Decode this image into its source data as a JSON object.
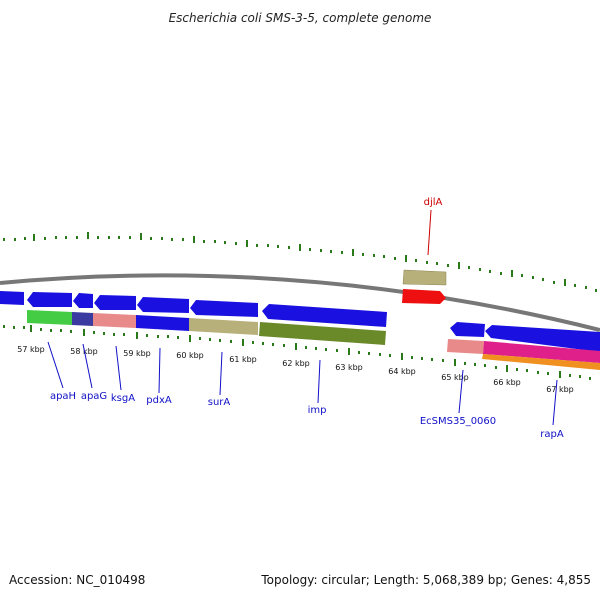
{
  "title": "Escherichia coli SMS-3-5, complete genome",
  "footer": {
    "accession": "Accession: NC_010498",
    "topology": "Topology: circular; Length: 5,068,389 bp; Genes: 4,855"
  },
  "kbp_ticks": [
    "57 kbp",
    "58 kbp",
    "59 kbp",
    "60 kbp",
    "61 kbp",
    "62 kbp",
    "63 kbp",
    "64 kbp",
    "65 kbp",
    "66 kbp",
    "67 kbp"
  ],
  "gene_labels": {
    "djlA": "djlA",
    "apaH": "apaH",
    "apaG": "apaG",
    "ksgA": "ksgA",
    "pdxA": "pdxA",
    "surA": "surA",
    "imp": "imp",
    "EcSMS35_0060": "EcSMS35_0060",
    "rapA": "rapA"
  },
  "colors": {
    "blue_gene": "#1a10e0",
    "red_gene": "#ee1010",
    "backbone": "#777777",
    "tick": "#2a7a1a",
    "green_feature": "#44cc44",
    "navy_feature": "#3a3aa0",
    "salmon_feature": "#e88a8a",
    "khaki_feature": "#b8b07a",
    "olive_feature": "#6a8a2a",
    "magenta_feature": "#e0208a",
    "orange_feature": "#f09020",
    "label_blue": "#1010c8",
    "label_red": "#cc0000"
  }
}
